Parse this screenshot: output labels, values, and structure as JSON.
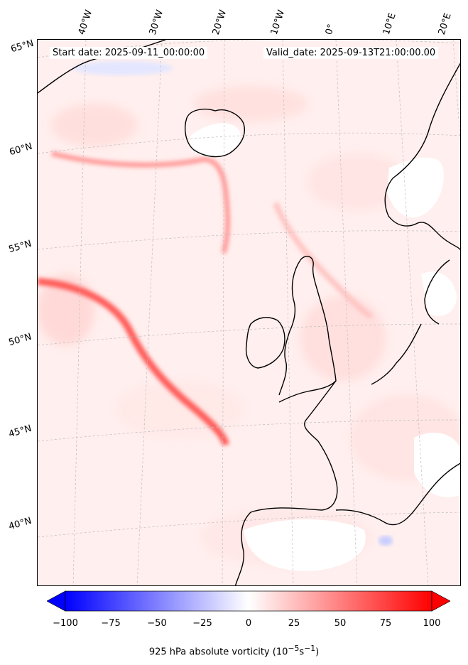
{
  "map": {
    "start_date": "Start date: 2025-09-11_00:00:00",
    "valid_date": "Valid_date: 2025-09-13T21:00:00.00",
    "longitude_labels": [
      "40°W",
      "30°W",
      "20°W",
      "10°W",
      "0°",
      "10°E",
      "20°E"
    ],
    "latitude_labels": [
      "65°N",
      "60°N",
      "55°N",
      "50°N",
      "45°N",
      "40°N"
    ],
    "field": "925 hPa absolute vorticity",
    "colorbar": {
      "min": -100,
      "max": 100,
      "ticks": [
        "−100",
        "−75",
        "−50",
        "−25",
        "0",
        "25",
        "50",
        "75",
        "100"
      ],
      "label": "925 hPa absolute vorticity (10",
      "label_exp1": "−5",
      "label_mid": "s",
      "label_exp2": "−1",
      "label_end": ")",
      "low_color": "#0000ff",
      "mid_color": "#ffffff",
      "high_color": "#ff0000"
    }
  }
}
